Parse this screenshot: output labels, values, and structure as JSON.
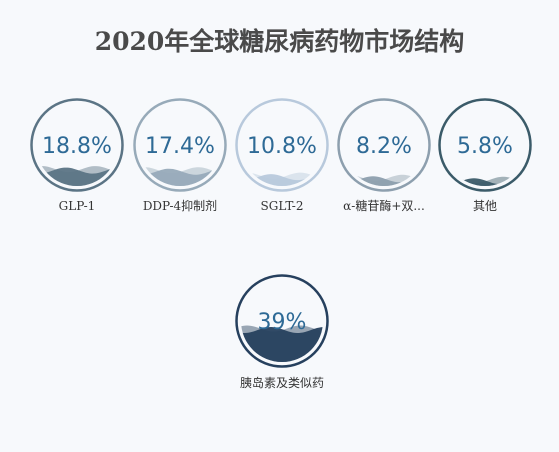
{
  "chart_data": {
    "type": "liquidfill",
    "title": "2020年全球糖尿病药物市场结构",
    "items": [
      {
        "name": "GLP-1",
        "label": "GLP-1",
        "value": 18.8,
        "display": "18.8%",
        "color": "#5b7485",
        "ring": "#5b7485"
      },
      {
        "name": "DDP-4抑制剂",
        "label": "DDP-4抑制剂",
        "value": 17.4,
        "display": "17.4%",
        "color": "#97aab9",
        "ring": "#97aab9"
      },
      {
        "name": "SGLT-2",
        "label": "SGLT-2",
        "value": 10.8,
        "display": "10.8%",
        "color": "#b8c9dc",
        "ring": "#b8c9dc"
      },
      {
        "name": "α-糖苷酶+双胍",
        "label": "α-糖苷酶+双...",
        "value": 8.2,
        "display": "8.2%",
        "color": "#8d9fae",
        "ring": "#8d9fae"
      },
      {
        "name": "其他",
        "label": "其他",
        "value": 5.8,
        "display": "5.8%",
        "color": "#3b5b69",
        "ring": "#3b5b69"
      },
      {
        "name": "胰岛素及类似药",
        "label": "胰岛素及类似药",
        "value": 39,
        "display": "39%",
        "color": "#26405e",
        "ring": "#26405e"
      }
    ],
    "value_text_color": "#2e6a96"
  }
}
